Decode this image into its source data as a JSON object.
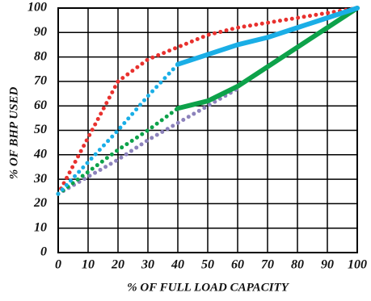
{
  "chart_data": {
    "type": "line",
    "x_label": "% OF FULL LOAD CAPACITY",
    "y_label": "% OF BHP USED",
    "x": [
      0,
      10,
      20,
      30,
      40,
      50,
      60,
      70,
      80,
      90,
      100
    ],
    "xlim": [
      0,
      100
    ],
    "ylim": [
      0,
      100
    ],
    "xticks": [
      0,
      10,
      20,
      30,
      40,
      50,
      60,
      70,
      80,
      90,
      100
    ],
    "yticks": [
      0,
      10,
      20,
      30,
      40,
      50,
      60,
      70,
      80,
      90,
      100
    ],
    "grid": true,
    "series": [
      {
        "color": "#e8312e",
        "style": "dotted",
        "values": [
          24,
          47,
          70,
          79,
          84,
          89,
          92,
          94,
          96,
          98,
          100
        ]
      },
      {
        "color": "#8c82bb",
        "style": "dotted",
        "values": [
          24,
          31,
          38,
          46,
          53,
          60,
          67,
          null,
          null,
          null,
          null
        ]
      },
      {
        "color": "#0da24a",
        "style": "dotted",
        "values": [
          24,
          33,
          42,
          50,
          59,
          null,
          null,
          null,
          null,
          null,
          null
        ]
      },
      {
        "color": "#0da24a",
        "style": "solid",
        "values": [
          null,
          null,
          null,
          null,
          59,
          62,
          68,
          76,
          84,
          92,
          100
        ]
      },
      {
        "color": "#1aaee6",
        "style": "dotted",
        "values": [
          24,
          37,
          50,
          64,
          77,
          null,
          null,
          null,
          null,
          null,
          null
        ]
      },
      {
        "color": "#1aaee6",
        "style": "solid",
        "values": [
          null,
          null,
          null,
          null,
          77,
          81,
          85,
          88,
          92,
          96,
          100
        ]
      }
    ]
  }
}
